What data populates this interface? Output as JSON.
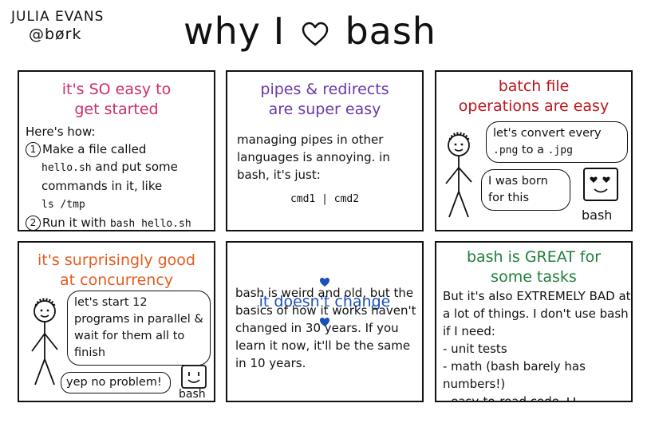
{
  "header": {
    "author_name": "JULIA EVANS",
    "author_handle": "@børk",
    "title_before": "why I",
    "title_after": "bash",
    "heart_icon": "heart-outline-icon"
  },
  "colors": {
    "pink": "#cc2e6b",
    "purple": "#6a38a8",
    "red": "#c0141d",
    "orange": "#e55c1e",
    "blue": "#1a4fb8",
    "green": "#1f7f3a"
  },
  "panels": {
    "easy_start": {
      "title": "it's SO easy to\nget started",
      "intro": "Here's how:",
      "step1_num": "1",
      "step1_a": "Make a file called",
      "step1_code1": "hello.sh",
      "step1_b": " and put some",
      "step1_c": "commands in it, like",
      "step1_code2": "ls /tmp",
      "step2_num": "2",
      "step2_a": "Run it with ",
      "step2_code": "bash hello.sh"
    },
    "pipes": {
      "title": "pipes & redirects\nare super easy",
      "body": "managing pipes in other languages is annoying. in bash, it's just:",
      "code": "cmd1 | cmd2"
    },
    "batch": {
      "title": "batch file\noperations are easy",
      "bubble1_a": "let's convert every",
      "bubble1_code1": ".png",
      "bubble1_mid": " to a ",
      "bubble1_code2": ".jpg",
      "bubble2": "I was born for this",
      "bash_label": "bash"
    },
    "concurrency": {
      "title": "it's surprisingly good\nat concurrency",
      "bubble1": "let's start 12 programs in parallel & wait for them all to finish",
      "bubble2": "yep no problem!",
      "bash_label": "bash"
    },
    "unchanged": {
      "title": "it doesn't change",
      "body": "bash is weird and old, but the basics of how it works haven't changed in 30 years. If you learn it now, it'll be the same in 10 years."
    },
    "great": {
      "title": "bash is GREAT for\nsome tasks",
      "intro": "But it's also EXTREMELY BAD at a lot of things. I don't use bash if I need:",
      "items": [
        "- unit tests",
        "- math (bash barely has numbers!)",
        "- easy-to-read code"
      ]
    }
  }
}
